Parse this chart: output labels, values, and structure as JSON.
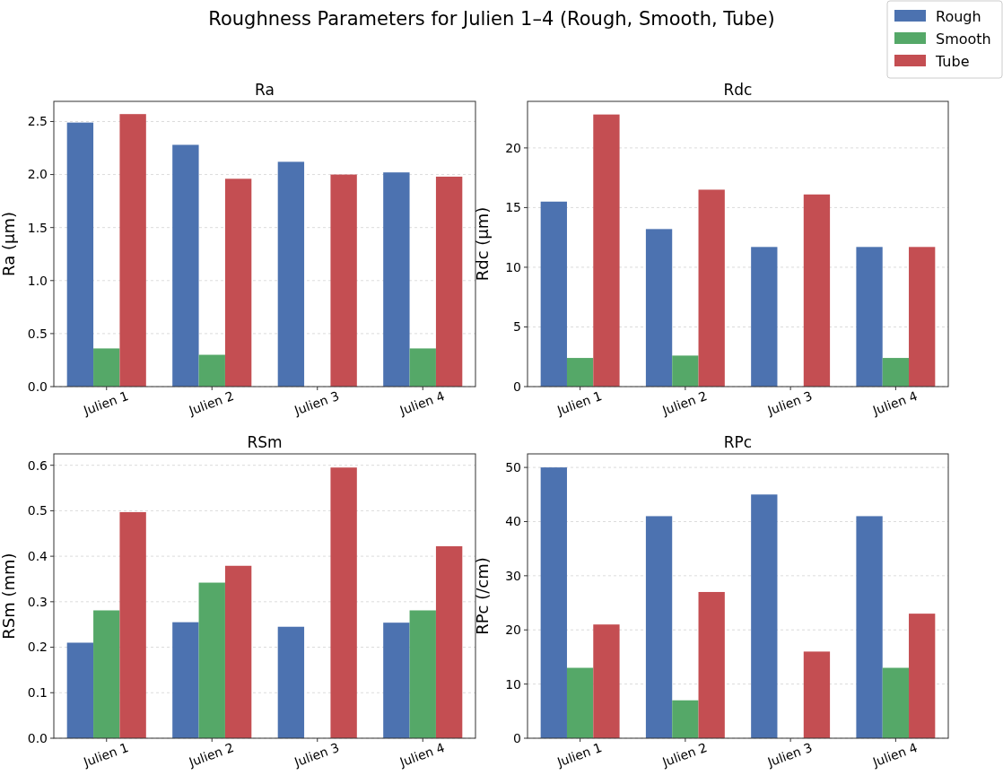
{
  "chart_data": [
    {
      "type": "bar",
      "title": "Ra",
      "ylabel": "Ra (µm)",
      "annotations": [
        "Roughness Parameters for Julien 1–4 (Rough, Smooth, Tube)"
      ],
      "legend": "top right",
      "grid": "y",
      "categories": [
        "Julien 1",
        "Julien 2",
        "Julien 3",
        "Julien 4"
      ],
      "ylim": [
        0,
        2.69
      ],
      "yticks": [
        {
          "value": 0,
          "label": "0.0"
        },
        {
          "value": 0.5,
          "label": "0.5"
        },
        {
          "value": 1,
          "label": "1.0"
        },
        {
          "value": 1.5,
          "label": "1.5"
        },
        {
          "value": 2,
          "label": "2.0"
        },
        {
          "value": 2.5,
          "label": "2.5"
        }
      ],
      "series": [
        {
          "name": "Rough",
          "color": "#4c72b0",
          "values": [
            2.49,
            2.28,
            2.12,
            2.02
          ]
        },
        {
          "name": "Smooth",
          "color": "#55a868",
          "values": [
            0.36,
            0.3,
            null,
            0.36
          ]
        },
        {
          "name": "Tube",
          "color": "#c44e52",
          "values": [
            2.57,
            1.96,
            2.0,
            1.98
          ]
        }
      ]
    },
    {
      "type": "bar",
      "title": "Rdc",
      "ylabel": "Rdc (µm)",
      "grid": "y",
      "categories": [
        "Julien 1",
        "Julien 2",
        "Julien 3",
        "Julien 4"
      ],
      "ylim": [
        0,
        23.9
      ],
      "yticks": [
        0,
        5,
        10,
        15,
        20
      ],
      "series": [
        {
          "color": "#4c72b0",
          "values": [
            15.5,
            13.2,
            11.7,
            11.7
          ]
        },
        {
          "color": "#55a868",
          "values": [
            2.4,
            2.6,
            null,
            2.4
          ]
        },
        {
          "color": "#c44e52",
          "values": [
            22.8,
            16.5,
            16.1,
            11.7
          ]
        }
      ]
    },
    {
      "type": "bar",
      "title": "RSm",
      "ylabel": "RSm (mm)",
      "grid": "y",
      "categories": [
        "Julien 1",
        "Julien 2",
        "Julien 3",
        "Julien 4"
      ],
      "ylim": [
        0,
        0.625
      ],
      "yticks": [
        {
          "value": 0,
          "label": "0.0"
        },
        0.1,
        0.2,
        0.3,
        0.4,
        0.5,
        0.6
      ],
      "series": [
        {
          "color": "#4c72b0",
          "values": [
            0.21,
            0.255,
            0.245,
            0.254
          ]
        },
        {
          "color": "#55a868",
          "values": [
            0.281,
            0.342,
            null,
            0.281
          ]
        },
        {
          "color": "#c44e52",
          "values": [
            0.497,
            0.379,
            0.595,
            0.422
          ]
        }
      ]
    },
    {
      "type": "bar",
      "title": "RPc",
      "ylabel": "RPc (/cm)",
      "grid": "y",
      "categories": [
        "Julien 1",
        "Julien 2",
        "Julien 3",
        "Julien 4"
      ],
      "ylim": [
        0,
        52.5
      ],
      "yticks": [
        0,
        10,
        20,
        30,
        40,
        50
      ],
      "series": [
        {
          "color": "#4c72b0",
          "values": [
            50,
            41,
            45,
            41
          ]
        },
        {
          "color": "#55a868",
          "values": [
            13,
            7,
            null,
            13
          ]
        },
        {
          "color": "#c44e52",
          "values": [
            21,
            27,
            16,
            23
          ]
        }
      ]
    }
  ]
}
